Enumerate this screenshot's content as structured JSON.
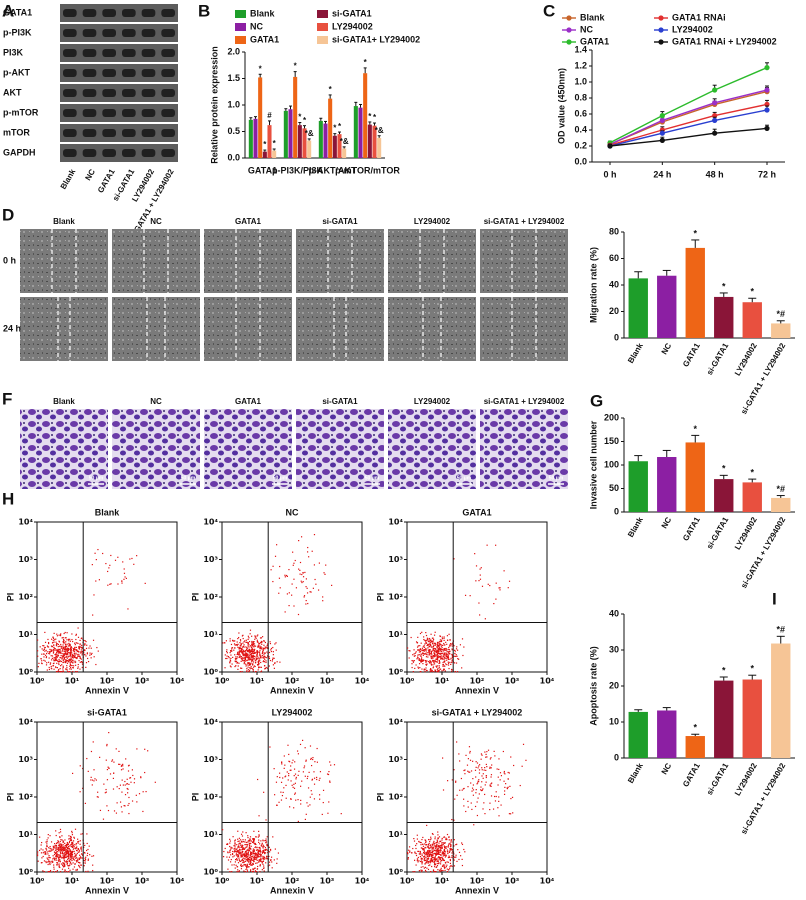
{
  "panel_labels": [
    "A",
    "B",
    "C",
    "D",
    "F",
    "G",
    "H",
    "I"
  ],
  "western_blot": {
    "rows": [
      "GATA1",
      "p-PI3K",
      "PI3K",
      "p-AKT",
      "AKT",
      "p-mTOR",
      "mTOR",
      "GAPDH"
    ],
    "lanes": [
      "Blank",
      "NC",
      "GATA1",
      "si-GATA1",
      "LY294002",
      "si-GATA1 + LY294002"
    ]
  },
  "chart_data": [
    {
      "type": "bar",
      "ylabel": "Relative protein expression",
      "categories": [
        "GATA1",
        "p-PI3K/PI3K",
        "p-AKT/AKT",
        "p-mTOR/mTOR"
      ],
      "series": [
        {
          "name": "Blank",
          "color": "#1e9e2a",
          "values": [
            0.72,
            0.89,
            0.7,
            0.98
          ],
          "errors": [
            0.04,
            0.04,
            0.05,
            0.07
          ],
          "annotations": [
            null,
            null,
            null,
            null
          ]
        },
        {
          "name": "NC",
          "color": "#8c1fa3",
          "values": [
            0.74,
            0.92,
            0.65,
            0.95
          ],
          "errors": [
            0.04,
            0.06,
            0.04,
            0.06
          ],
          "annotations": [
            null,
            null,
            null,
            null
          ]
        },
        {
          "name": "GATA1",
          "color": "#ee6516",
          "values": [
            1.52,
            1.53,
            1.12,
            1.6
          ],
          "errors": [
            0.06,
            0.1,
            0.07,
            0.1
          ],
          "annotations": [
            "*",
            "*",
            "*",
            "*"
          ]
        },
        {
          "name": "si-GATA1",
          "color": "#8a1538",
          "values": [
            0.12,
            0.62,
            0.42,
            0.63
          ],
          "errors": [
            0.03,
            0.05,
            0.04,
            0.05
          ],
          "annotations": [
            "*",
            "*",
            "*",
            "*"
          ]
        },
        {
          "name": "LY294002",
          "color": "#e8503f",
          "values": [
            0.62,
            0.56,
            0.45,
            0.61
          ],
          "errors": [
            0.08,
            0.05,
            0.04,
            0.05
          ],
          "annotations": [
            "#",
            "*",
            "*",
            "*"
          ]
        },
        {
          "name": "si-GATA1+ LY294002",
          "color": "#f6c596",
          "values": [
            0.14,
            0.33,
            0.18,
            0.38
          ],
          "errors": [
            0.03,
            0.03,
            0.03,
            0.04
          ],
          "annotations": [
            "*",
            "*&",
            "*&",
            "*&"
          ]
        }
      ],
      "ylim": [
        0,
        2
      ],
      "yticks": [
        {
          "value": 0,
          "label": "0.0"
        },
        0.5,
        {
          "value": 1,
          "label": "1.0"
        },
        1.5,
        {
          "value": 2,
          "label": "2.0"
        }
      ]
    },
    {
      "type": "line",
      "ylabel": "OD value (450nm)",
      "categories": [
        "0 h",
        "24 h",
        "48 h",
        "72 h"
      ],
      "series": [
        {
          "name": "Blank",
          "color": "#c8642a",
          "values": [
            0.22,
            0.5,
            0.72,
            0.88
          ],
          "errors": [
            0.02,
            0.04,
            0.04,
            0.05
          ]
        },
        {
          "name": "NC",
          "color": "#9b2fc8",
          "values": [
            0.22,
            0.52,
            0.74,
            0.9
          ],
          "errors": [
            0.02,
            0.04,
            0.05,
            0.05
          ]
        },
        {
          "name": "GATA1",
          "color": "#2cbb2c",
          "values": [
            0.24,
            0.58,
            0.9,
            1.18
          ],
          "errors": [
            0.02,
            0.05,
            0.06,
            0.06
          ]
        },
        {
          "name": "GATA1 RNAi",
          "color": "#e23030",
          "values": [
            0.21,
            0.4,
            0.58,
            0.72
          ],
          "errors": [
            0.02,
            0.04,
            0.04,
            0.05
          ]
        },
        {
          "name": "LY294002",
          "color": "#2a3fd0",
          "values": [
            0.2,
            0.36,
            0.52,
            0.65
          ],
          "errors": [
            0.02,
            0.03,
            0.04,
            0.05
          ]
        },
        {
          "name": "GATA1 RNAi + LY294002",
          "color": "#111111",
          "values": [
            0.2,
            0.27,
            0.36,
            0.42
          ],
          "errors": [
            0.02,
            0.04,
            0.05,
            0.04
          ]
        }
      ],
      "ylim": [
        0,
        1.4
      ],
      "yticks": [
        {
          "value": 0,
          "label": "0.0"
        },
        0.2,
        0.4,
        0.6,
        0.8,
        {
          "value": 1,
          "label": "1.0"
        },
        1.2,
        1.4
      ]
    },
    {
      "type": "bar",
      "ylabel": "Migration rate (%)",
      "categories": [
        "Blank",
        "NC",
        "GATA1",
        "si-GATA1",
        "LY294002",
        "si-GATA1 + LY294002"
      ],
      "colors": [
        "#1e9e2a",
        "#8c1fa3",
        "#ee6516",
        "#8a1538",
        "#e8503f",
        "#f6c596"
      ],
      "values": [
        45,
        47,
        68,
        31,
        27,
        11
      ],
      "errors": [
        5,
        4,
        6,
        3,
        3,
        2
      ],
      "annotations": [
        null,
        null,
        "*",
        "*",
        "*",
        "*#"
      ],
      "ylim": [
        0,
        80
      ],
      "yticks": [
        0,
        20,
        40,
        60,
        80
      ]
    },
    {
      "type": "bar",
      "ylabel": "Invasive cell number",
      "categories": [
        "Blank",
        "NC",
        "GATA1",
        "si-GATA1",
        "LY294002",
        "si-GATA1 + LY294002"
      ],
      "colors": [
        "#1e9e2a",
        "#8c1fa3",
        "#ee6516",
        "#8a1538",
        "#e8503f",
        "#f6c596"
      ],
      "values": [
        108,
        117,
        148,
        70,
        63,
        30
      ],
      "errors": [
        12,
        14,
        15,
        8,
        7,
        5
      ],
      "annotations": [
        null,
        null,
        "*",
        "*",
        "*",
        "*#"
      ],
      "ylim": [
        0,
        200
      ],
      "yticks": [
        0,
        50,
        100,
        150,
        200
      ]
    },
    {
      "type": "bar",
      "ylabel": "Apoptosis rate (%)",
      "categories": [
        "Blank",
        "NC",
        "GATA1",
        "si-GATA1",
        "LY294002",
        "si-GATA1 + LY294002"
      ],
      "colors": [
        "#1e9e2a",
        "#8c1fa3",
        "#ee6516",
        "#8a1538",
        "#e8503f",
        "#f6c596"
      ],
      "values": [
        12.8,
        13.2,
        6.1,
        21.5,
        21.8,
        31.8
      ],
      "errors": [
        0.6,
        0.8,
        0.5,
        1,
        1.2,
        2
      ],
      "annotations": [
        null,
        null,
        "*",
        "*",
        "*",
        "*#"
      ],
      "ylim": [
        0,
        40
      ],
      "yticks": [
        0,
        10,
        20,
        30,
        40
      ]
    }
  ],
  "scratch_assay": {
    "columns": [
      "Blank",
      "NC",
      "GATA1",
      "si-GATA1",
      "LY294002",
      "si-GATA1 + LY294002"
    ],
    "rows": [
      "0 h",
      "24 h"
    ]
  },
  "transwell": {
    "columns": [
      "Blank",
      "NC",
      "GATA1",
      "si-GATA1",
      "LY294002",
      "si-GATA1 + LY294002"
    ],
    "scale_bar": "50 μm"
  },
  "flow_cytometry": {
    "titles": [
      "Blank",
      "NC",
      "GATA1",
      "si-GATA1",
      "LY294002",
      "si-GATA1 + LY294002"
    ],
    "xlabel": "Annexin V",
    "ylabel": "PI",
    "xlim": [
      1,
      10000
    ],
    "ylim": [
      1,
      10000
    ],
    "log": true,
    "ticks": [
      {
        "value": 1,
        "label": "10⁰"
      },
      {
        "value": 10,
        "label": "10¹"
      },
      {
        "value": 100,
        "label": "10²"
      },
      {
        "value": 1000,
        "label": "10³"
      },
      {
        "value": 10000,
        "label": "10⁴"
      }
    ]
  }
}
